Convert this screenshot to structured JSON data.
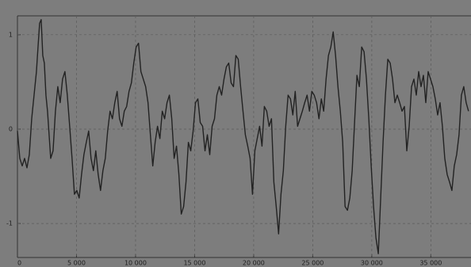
{
  "chart_data": {
    "type": "line",
    "color": "#222222",
    "grid": true,
    "xlim": [
      0,
      38400
    ],
    "ylim": [
      -1.36,
      1.2
    ],
    "yticks": [
      1,
      0,
      -1
    ],
    "xticks": [
      0,
      {
        "value": 5000,
        "label": "5 000"
      },
      {
        "value": 10000,
        "label": "10 000"
      },
      {
        "value": 15000,
        "label": "15 000"
      },
      {
        "value": 20000,
        "label": "20 000"
      },
      {
        "value": 25000,
        "label": "25 000"
      },
      {
        "value": 30000,
        "label": "30 000"
      },
      {
        "value": 35000,
        "label": "35 000"
      }
    ],
    "x": [
      0,
      201,
      402,
      603,
      804,
      1005,
      1206,
      1407,
      1608,
      1742,
      1876,
      2010,
      2144,
      2278,
      2412,
      2546,
      2680,
      2814,
      3015,
      3216,
      3417,
      3618,
      3819,
      4020,
      4221,
      4422,
      4623,
      4824,
      5025,
      5226,
      5427,
      5628,
      5829,
      6030,
      6231,
      6432,
      6633,
      6834,
      7035,
      7236,
      7437,
      7638,
      7839,
      8040,
      8241,
      8442,
      8643,
      8844,
      9045,
      9246,
      9447,
      9648,
      9849,
      10050,
      10251,
      10452,
      10653,
      10854,
      11055,
      11256,
      11457,
      11658,
      11859,
      12060,
      12261,
      12462,
      12663,
      12864,
      13065,
      13266,
      13467,
      13668,
      13869,
      14070,
      14271,
      14472,
      14673,
      14874,
      15075,
      15276,
      15477,
      15678,
      15879,
      16080,
      16281,
      16482,
      16683,
      16884,
      17085,
      17286,
      17487,
      17688,
      17889,
      18090,
      18291,
      18492,
      18693,
      18894,
      19095,
      19296,
      19497,
      19698,
      19899,
      20100,
      20301,
      20502,
      20703,
      20904,
      21105,
      21306,
      21507,
      21708,
      21909,
      22110,
      22311,
      22512,
      22713,
      22914,
      23115,
      23316,
      23517,
      23718,
      23919,
      24120,
      24321,
      24522,
      24723,
      24924,
      25125,
      25326,
      25527,
      25728,
      25929,
      26130,
      26331,
      26532,
      26733,
      26934,
      27135,
      27336,
      27537,
      27738,
      27939,
      28140,
      28341,
      28542,
      28743,
      28944,
      29145,
      29346,
      29547,
      29748,
      29949,
      30150,
      30351,
      30552,
      30753,
      30954,
      31155,
      31356,
      31557,
      31758,
      31959,
      32160,
      32361,
      32562,
      32763,
      32964,
      33165,
      33366,
      33567,
      33768,
      33969,
      34170,
      34371,
      34572,
      34773,
      34974,
      35175,
      35376,
      35577,
      35778,
      35979,
      36180,
      36381,
      36582,
      36783,
      36984,
      37185,
      37386,
      37587,
      37788,
      37989,
      38190
    ],
    "values": [
      -0.02,
      -0.31,
      -0.39,
      -0.31,
      -0.41,
      -0.27,
      0.11,
      0.36,
      0.61,
      0.87,
      1.12,
      1.16,
      0.78,
      0.7,
      0.36,
      0.19,
      -0.06,
      -0.31,
      -0.23,
      0.19,
      0.45,
      0.28,
      0.53,
      0.61,
      0.36,
      0.03,
      -0.31,
      -0.69,
      -0.65,
      -0.73,
      -0.48,
      -0.27,
      -0.14,
      -0.02,
      -0.31,
      -0.44,
      -0.23,
      -0.48,
      -0.65,
      -0.44,
      -0.31,
      -0.02,
      0.19,
      0.11,
      0.28,
      0.4,
      0.11,
      0.03,
      0.19,
      0.24,
      0.4,
      0.49,
      0.7,
      0.87,
      0.91,
      0.61,
      0.53,
      0.45,
      0.28,
      -0.06,
      -0.39,
      -0.14,
      0.03,
      -0.1,
      0.19,
      0.11,
      0.28,
      0.36,
      0.11,
      -0.31,
      -0.18,
      -0.48,
      -0.9,
      -0.82,
      -0.56,
      -0.14,
      -0.23,
      -0.02,
      0.28,
      0.32,
      0.07,
      0.03,
      -0.23,
      -0.06,
      -0.27,
      0.03,
      0.11,
      0.36,
      0.45,
      0.36,
      0.53,
      0.66,
      0.7,
      0.49,
      0.45,
      0.78,
      0.74,
      0.45,
      0.19,
      -0.06,
      -0.18,
      -0.31,
      -0.69,
      -0.23,
      -0.1,
      0.03,
      -0.18,
      0.24,
      0.19,
      0.03,
      0.11,
      -0.56,
      -0.82,
      -1.11,
      -0.69,
      -0.44,
      0.03,
      0.36,
      0.32,
      0.15,
      0.4,
      0.03,
      0.11,
      0.19,
      0.28,
      0.36,
      0.19,
      0.4,
      0.36,
      0.28,
      0.11,
      0.32,
      0.19,
      0.53,
      0.78,
      0.87,
      1.03,
      0.78,
      0.45,
      0.19,
      -0.14,
      -0.82,
      -0.86,
      -0.73,
      -0.44,
      0.07,
      0.57,
      0.45,
      0.87,
      0.82,
      0.53,
      0.11,
      -0.39,
      -0.82,
      -1.15,
      -1.32,
      -0.73,
      -0.14,
      0.36,
      0.74,
      0.7,
      0.53,
      0.28,
      0.36,
      0.28,
      0.19,
      0.24,
      -0.23,
      0.03,
      0.45,
      0.53,
      0.36,
      0.61,
      0.45,
      0.57,
      0.28,
      0.61,
      0.53,
      0.45,
      0.32,
      0.15,
      0.28,
      0.03,
      -0.31,
      -0.48,
      -0.56,
      -0.65,
      -0.39,
      -0.27,
      -0.06,
      0.36,
      0.45,
      0.28,
      0.19
    ]
  }
}
